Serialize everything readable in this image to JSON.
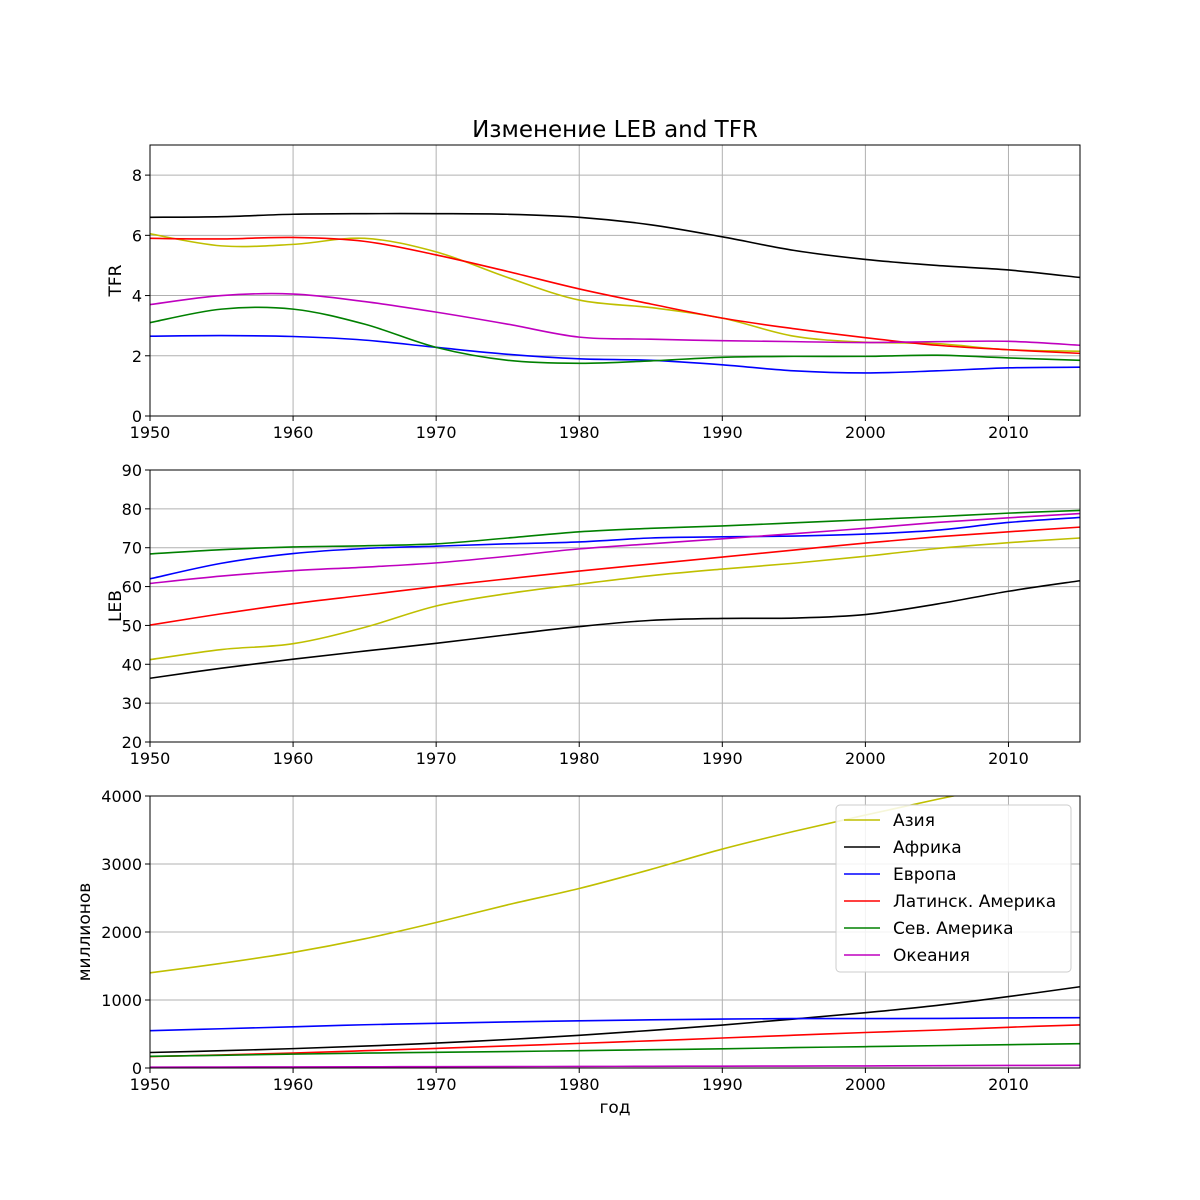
{
  "figure": {
    "title": "Изменение LEB and TFR",
    "bottom_xlabel": "год"
  },
  "colors": {
    "Азия": "#bfbf00",
    "Африка": "#000000",
    "Европа": "#0000ff",
    "Латинск. Америка": "#ff0000",
    "Сев. Америка": "#008000",
    "Океания": "#bf00bf"
  },
  "legend": {
    "placement": "top-right of bottom panel",
    "entries": [
      "Азия",
      "Африка",
      "Европа",
      "Латинск. Америка",
      "Сев. Америка",
      "Океания"
    ]
  },
  "chart_data": [
    {
      "type": "line",
      "title": "Изменение LEB and TFR",
      "xlabel": "",
      "ylabel": "TFR",
      "xlim": [
        1950,
        2015
      ],
      "ylim": [
        0,
        9
      ],
      "xticks": [
        "1950",
        "1960",
        "1970",
        "1980",
        "1990",
        "2000",
        "2010"
      ],
      "yticks": [
        "0",
        "2",
        "4",
        "6",
        "8"
      ],
      "grid": true,
      "x": [
        1950,
        1955,
        1960,
        1965,
        1970,
        1975,
        1980,
        1985,
        1990,
        1995,
        2000,
        2005,
        2010,
        2015
      ],
      "series": [
        {
          "name": "Азия",
          "values": [
            6.05,
            5.65,
            5.7,
            5.9,
            5.45,
            4.6,
            3.85,
            3.6,
            3.25,
            2.65,
            2.45,
            2.4,
            2.2,
            2.15
          ]
        },
        {
          "name": "Африка",
          "values": [
            6.6,
            6.62,
            6.7,
            6.72,
            6.72,
            6.7,
            6.6,
            6.35,
            5.95,
            5.5,
            5.2,
            5.0,
            4.85,
            4.6
          ]
        },
        {
          "name": "Европа",
          "values": [
            2.65,
            2.67,
            2.64,
            2.52,
            2.28,
            2.05,
            1.9,
            1.85,
            1.7,
            1.5,
            1.43,
            1.5,
            1.6,
            1.62
          ]
        },
        {
          "name": "Латинск. Америка",
          "values": [
            5.9,
            5.88,
            5.93,
            5.8,
            5.35,
            4.8,
            4.22,
            3.72,
            3.25,
            2.9,
            2.6,
            2.35,
            2.2,
            2.08
          ]
        },
        {
          "name": "Сев. Америка",
          "values": [
            3.1,
            3.55,
            3.55,
            3.05,
            2.28,
            1.85,
            1.75,
            1.83,
            1.95,
            1.98,
            1.98,
            2.02,
            1.93,
            1.85
          ]
        },
        {
          "name": "Океания",
          "values": [
            3.7,
            4.0,
            4.05,
            3.8,
            3.45,
            3.05,
            2.62,
            2.55,
            2.5,
            2.47,
            2.44,
            2.47,
            2.48,
            2.35
          ]
        }
      ]
    },
    {
      "type": "line",
      "title": "",
      "xlabel": "",
      "ylabel": "LEB",
      "xlim": [
        1950,
        2015
      ],
      "ylim": [
        20,
        90
      ],
      "xticks": [
        "1950",
        "1960",
        "1970",
        "1980",
        "1990",
        "2000",
        "2010"
      ],
      "yticks": [
        "20",
        "30",
        "40",
        "50",
        "60",
        "70",
        "80",
        "90"
      ],
      "grid": true,
      "x": [
        1950,
        1955,
        1960,
        1965,
        1970,
        1975,
        1980,
        1985,
        1990,
        1995,
        2000,
        2005,
        2010,
        2015
      ],
      "series": [
        {
          "name": "Азия",
          "values": [
            41.2,
            43.8,
            45.3,
            49.5,
            55.0,
            58.2,
            60.6,
            62.8,
            64.5,
            66.0,
            67.8,
            69.8,
            71.3,
            72.5
          ]
        },
        {
          "name": "Африка",
          "values": [
            36.4,
            39.0,
            41.3,
            43.4,
            45.4,
            47.6,
            49.7,
            51.3,
            51.8,
            51.9,
            52.8,
            55.5,
            58.8,
            61.5
          ]
        },
        {
          "name": "Европа",
          "values": [
            62.0,
            66.0,
            68.5,
            69.8,
            70.4,
            71.0,
            71.5,
            72.5,
            72.8,
            73.0,
            73.5,
            74.5,
            76.5,
            77.8
          ]
        },
        {
          "name": "Латинск. Америка",
          "values": [
            50.1,
            53.0,
            55.6,
            57.8,
            60.0,
            62.0,
            64.0,
            65.8,
            67.6,
            69.4,
            71.2,
            72.8,
            74.1,
            75.3
          ]
        },
        {
          "name": "Сев. Америка",
          "values": [
            68.4,
            69.5,
            70.2,
            70.5,
            71.0,
            72.5,
            74.1,
            75.0,
            75.6,
            76.4,
            77.2,
            78.0,
            78.9,
            79.6
          ]
        },
        {
          "name": "Океания",
          "values": [
            60.8,
            62.7,
            64.1,
            65.0,
            66.1,
            67.8,
            69.7,
            71.0,
            72.3,
            73.6,
            75.0,
            76.5,
            77.7,
            78.8
          ]
        }
      ]
    },
    {
      "type": "line",
      "title": "",
      "xlabel": "год",
      "ylabel": "миллионов",
      "xlim": [
        1950,
        2015
      ],
      "ylim": [
        0,
        4000
      ],
      "xticks": [
        "1950",
        "1960",
        "1970",
        "1980",
        "1990",
        "2000",
        "2010"
      ],
      "yticks": [
        "0",
        "1000",
        "2000",
        "3000",
        "4000"
      ],
      "grid": true,
      "x": [
        1950,
        1955,
        1960,
        1965,
        1970,
        1975,
        1980,
        1985,
        1990,
        1995,
        2000,
        2005,
        2010,
        2015
      ],
      "series": [
        {
          "name": "Азия",
          "values": [
            1400,
            1540,
            1700,
            1900,
            2140,
            2400,
            2640,
            2920,
            3220,
            3480,
            3720,
            3950,
            4170,
            4390
          ]
        },
        {
          "name": "Африка",
          "values": [
            228,
            254,
            285,
            322,
            366,
            419,
            480,
            553,
            632,
            720,
            814,
            920,
            1050,
            1195
          ]
        },
        {
          "name": "Европа",
          "values": [
            549,
            577,
            606,
            636,
            657,
            678,
            694,
            708,
            720,
            727,
            727,
            729,
            736,
            740
          ]
        },
        {
          "name": "Латинск. Америка",
          "values": [
            168,
            192,
            220,
            254,
            288,
            324,
            362,
            400,
            441,
            482,
            522,
            557,
            599,
            634
          ]
        },
        {
          "name": "Сев. Америка",
          "values": [
            172,
            187,
            204,
            219,
            231,
            242,
            255,
            269,
            282,
            300,
            314,
            329,
            343,
            357
          ]
        },
        {
          "name": "Океания",
          "values": [
            13,
            14,
            16,
            18,
            20,
            21,
            23,
            25,
            27,
            29,
            31,
            34,
            37,
            40
          ]
        }
      ]
    }
  ]
}
